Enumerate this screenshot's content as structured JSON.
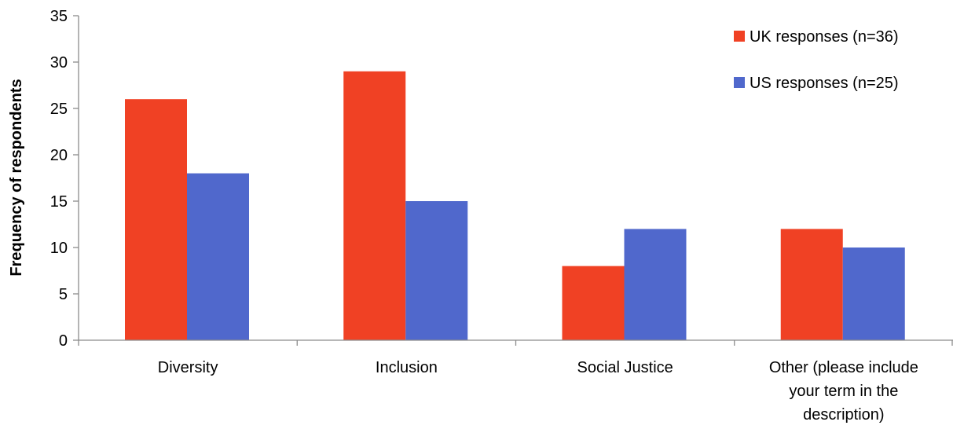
{
  "chart_data": {
    "type": "bar",
    "title": "",
    "xlabel": "",
    "ylabel": "Frequency of respondents",
    "ylim": [
      0,
      35
    ],
    "yticks": [
      0,
      5,
      10,
      15,
      20,
      25,
      30,
      35
    ],
    "grid": false,
    "legend_position": "top-right",
    "categories": [
      [
        "Diversity"
      ],
      [
        "Inclusion"
      ],
      [
        "Social Justice"
      ],
      [
        "Other (please include",
        "your term in the",
        "description)"
      ]
    ],
    "series": [
      {
        "name": "UK responses (n=36)",
        "color": "#f04124",
        "values": [
          26,
          29,
          8,
          12
        ]
      },
      {
        "name": "US responses (n=25)",
        "color": "#5068cc",
        "values": [
          18,
          15,
          12,
          10
        ]
      }
    ]
  }
}
